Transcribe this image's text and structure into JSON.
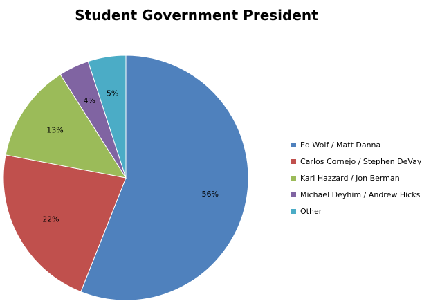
{
  "chart_data": {
    "type": "pie",
    "title": "Student Government President",
    "slices": [
      {
        "label": "Ed Wolf / Matt Danna",
        "value": 56,
        "data_label": "56%",
        "color": "#4F81BD"
      },
      {
        "label": "Carlos Cornejo / Stephen DeVay",
        "value": 22,
        "data_label": "22%",
        "color": "#C0504D"
      },
      {
        "label": "Kari Hazzard / Jon Berman",
        "value": 13,
        "data_label": "13%",
        "color": "#9BBB59"
      },
      {
        "label": "Michael Deyhim / Andrew Hicks",
        "value": 4,
        "data_label": "4%",
        "color": "#8064A2"
      },
      {
        "label": "Other",
        "value": 5,
        "data_label": "5%",
        "color": "#4BACC6"
      }
    ],
    "start_angle": "12 o'clock",
    "direction": "clockwise",
    "legend_position": "right"
  }
}
